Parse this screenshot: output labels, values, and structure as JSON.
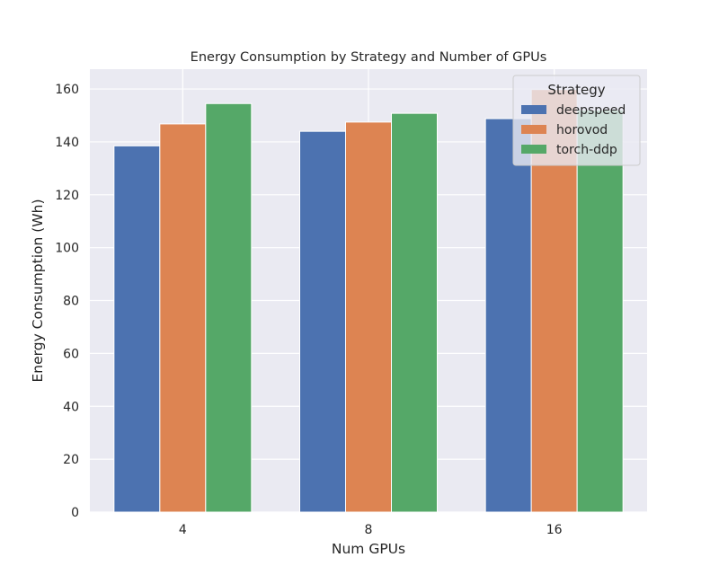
{
  "chart_data": {
    "type": "bar",
    "title": "Energy Consumption by Strategy and Number of GPUs",
    "xlabel": "Num GPUs",
    "ylabel": "Energy Consumption (Wh)",
    "categories": [
      "4",
      "8",
      "16"
    ],
    "series": [
      {
        "name": "deepspeed",
        "color": "#4c72b0",
        "values": [
          138.5,
          144.0,
          148.8
        ]
      },
      {
        "name": "horovod",
        "color": "#dd8452",
        "values": [
          146.8,
          147.5,
          159.8
        ]
      },
      {
        "name": "torch-ddp",
        "color": "#55a868",
        "values": [
          154.5,
          150.8,
          152.0
        ]
      }
    ],
    "ylim": [
      0,
      167.5
    ],
    "yticks": [
      0,
      20,
      40,
      60,
      80,
      100,
      120,
      140,
      160
    ],
    "ytick_labels": [
      "0",
      "20",
      "40",
      "60",
      "80",
      "100",
      "120",
      "140",
      "160"
    ],
    "grid": true,
    "legend": {
      "title": "Strategy",
      "position": "top-right"
    },
    "background_color": "#eaeaf2"
  }
}
